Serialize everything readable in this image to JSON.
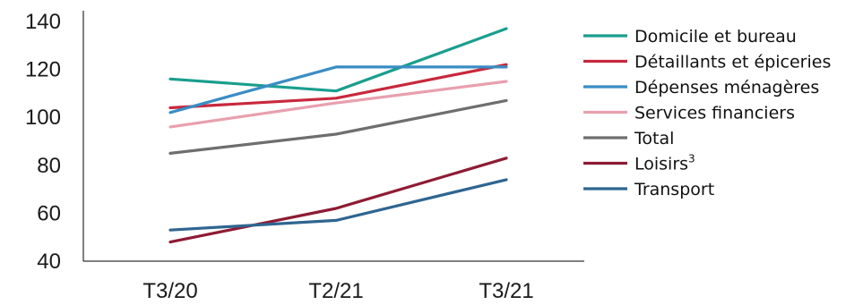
{
  "chart_data": {
    "type": "line",
    "categories": [
      "T3/20",
      "T2/21",
      "T3/21"
    ],
    "ylim": [
      40,
      140
    ],
    "yticks": [
      40,
      60,
      80,
      100,
      120,
      140
    ],
    "grid": false,
    "legend_position": "right",
    "series": [
      {
        "name": "Domicile et bureau",
        "sup": "",
        "color": "#1a9e8e",
        "values": [
          116,
          111,
          137
        ]
      },
      {
        "name": "Détaillants et épiceries",
        "sup": "",
        "color": "#c8283c",
        "values": [
          104,
          108,
          122
        ]
      },
      {
        "name": "Dépenses ménagères",
        "sup": "",
        "color": "#3a8dc4",
        "values": [
          102,
          121,
          121
        ]
      },
      {
        "name": "Services financiers",
        "sup": "",
        "color": "#e8a0ae",
        "values": [
          96,
          106,
          115
        ]
      },
      {
        "name": "Total",
        "sup": "",
        "color": "#6e6e6e",
        "values": [
          85,
          93,
          107
        ]
      },
      {
        "name": "Loisirs",
        "sup": "3",
        "color": "#8e1b34",
        "values": [
          48,
          62,
          83
        ]
      },
      {
        "name": "Transport",
        "sup": "",
        "color": "#2f6590",
        "values": [
          53,
          57,
          74
        ]
      }
    ]
  }
}
